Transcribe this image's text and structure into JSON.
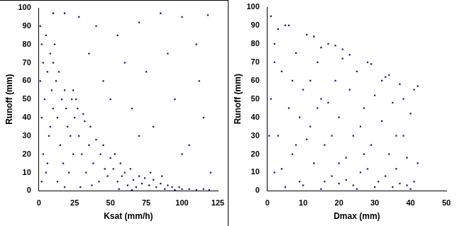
{
  "chart_data": [
    {
      "type": "scatter",
      "xlabel": "Ksat (mm/h)",
      "ylabel": "Runoff (mm)",
      "color": "#1a1a80",
      "marker": "square",
      "grid": false,
      "xlim": [
        0,
        125
      ],
      "xticks": [
        0,
        25,
        50,
        75,
        100,
        125
      ],
      "ylim": [
        0,
        100
      ],
      "yticks": [
        0,
        10,
        20,
        30,
        40,
        50,
        60,
        70,
        80,
        90,
        100
      ],
      "x": [
        1,
        2,
        3,
        1,
        4,
        2,
        5,
        6,
        7,
        3,
        8,
        9,
        10,
        5,
        8,
        2,
        6,
        10,
        12,
        13,
        15,
        14,
        16,
        18,
        20,
        17,
        19,
        22,
        23,
        21,
        24,
        25,
        11,
        13,
        18,
        24,
        27,
        28,
        30,
        32,
        33,
        35,
        36,
        38,
        40,
        42,
        43,
        45,
        46,
        48,
        50,
        29,
        37,
        26,
        31,
        52,
        55,
        57,
        58,
        60,
        62,
        64,
        66,
        68,
        70,
        72,
        74,
        53,
        56,
        65,
        77,
        80,
        82,
        85,
        88,
        90,
        93,
        95,
        98,
        100,
        105,
        110,
        115,
        119,
        78,
        86,
        10,
        18,
        28,
        40,
        55,
        70,
        85,
        100,
        118,
        60,
        75,
        90,
        110,
        45,
        95,
        115,
        80,
        105,
        65,
        50,
        120,
        100,
        35,
        70,
        112
      ],
      "values": [
        90,
        80,
        70,
        60,
        50,
        40,
        85,
        65,
        30,
        20,
        75,
        55,
        45,
        10,
        35,
        5,
        15,
        70,
        60,
        40,
        25,
        65,
        50,
        55,
        35,
        15,
        45,
        30,
        50,
        10,
        20,
        40,
        80,
        5,
        2,
        55,
        45,
        30,
        20,
        38,
        10,
        25,
        35,
        15,
        28,
        5,
        20,
        25,
        12,
        8,
        18,
        2,
        3,
        50,
        42,
        12,
        5,
        15,
        8,
        10,
        3,
        12,
        6,
        2,
        8,
        4,
        7,
        20,
        1,
        0.5,
        3,
        6,
        2,
        4,
        1,
        3,
        2,
        0.5,
        2,
        1,
        1,
        0.5,
        1,
        0.5,
        10,
        8,
        97,
        97,
        95,
        90,
        85,
        92,
        97,
        95,
        96,
        70,
        65,
        75,
        80,
        60,
        50,
        40,
        35,
        25,
        45,
        50,
        10,
        20,
        75,
        30,
        60
      ]
    },
    {
      "type": "scatter",
      "xlabel": "Dmax (mm)",
      "ylabel": "Runoff (mm)",
      "color": "#1a1a80",
      "marker": "square",
      "grid": false,
      "xlim": [
        0,
        50
      ],
      "xticks": [
        0,
        10,
        20,
        30,
        40,
        50
      ],
      "ylim": [
        0,
        100
      ],
      "yticks": [
        0,
        10,
        20,
        30,
        40,
        50,
        60,
        70,
        80,
        90,
        100
      ],
      "x": [
        1,
        2,
        1,
        3,
        2,
        4,
        5,
        6,
        7,
        8,
        9,
        10,
        11,
        12,
        13,
        14,
        15,
        16,
        17,
        18,
        19,
        20,
        21,
        22,
        23,
        24,
        25,
        26,
        27,
        28,
        29,
        30,
        31,
        32,
        33,
        34,
        35,
        36,
        37,
        38,
        39,
        40,
        41,
        42,
        42,
        3,
        6,
        9,
        12,
        15,
        18,
        21,
        24,
        27,
        30,
        33,
        36,
        39,
        41,
        5,
        10,
        15,
        20,
        25,
        35,
        40,
        8,
        14,
        20,
        26,
        32,
        38,
        4,
        11,
        17,
        23,
        29,
        34,
        7,
        13,
        19,
        16,
        22,
        28,
        37,
        2,
        0.5
      ],
      "values": [
        95,
        80,
        50,
        30,
        10,
        65,
        90,
        45,
        20,
        75,
        5,
        55,
        85,
        35,
        15,
        70,
        50,
        25,
        80,
        8,
        60,
        40,
        72,
        18,
        55,
        30,
        65,
        10,
        45,
        70,
        25,
        52,
        5,
        38,
        62,
        20,
        48,
        12,
        58,
        30,
        3,
        42,
        55,
        15,
        57,
        88,
        90,
        40,
        60,
        78,
        30,
        77,
        3,
        20,
        2,
        8,
        30,
        18,
        5,
        2,
        3,
        1,
        4,
        1,
        2,
        1,
        25,
        45,
        15,
        35,
        60,
        50,
        12,
        28,
        48,
        74,
        69,
        63,
        60,
        84,
        79,
        5,
        6,
        12,
        4,
        70,
        30
      ]
    }
  ]
}
